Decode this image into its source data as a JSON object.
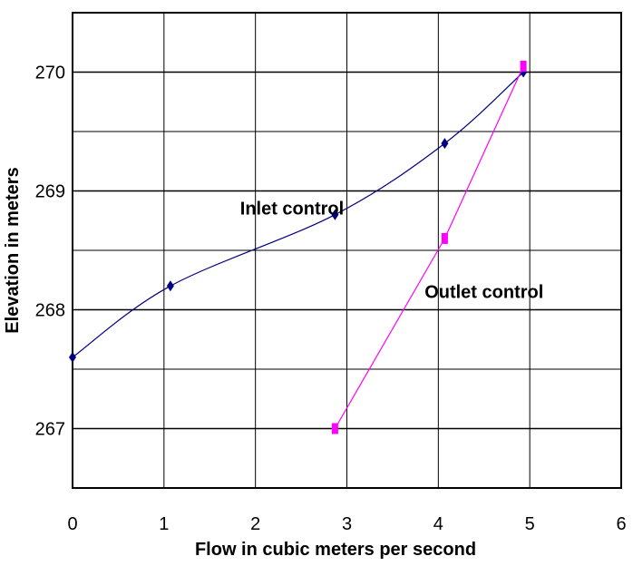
{
  "chart_data": {
    "type": "line",
    "title": "",
    "xlabel": "Flow in cubic meters per second",
    "ylabel": "Elevation in meters",
    "xlim": [
      0,
      6
    ],
    "ylim": [
      266.5,
      270.5
    ],
    "x_ticks": [
      0,
      1,
      2,
      3,
      4,
      5,
      6
    ],
    "y_ticks": [
      267,
      268,
      269,
      270
    ],
    "grid": true,
    "legend": "none",
    "series": [
      {
        "name": "Inlet control",
        "color": "#000080",
        "marker": "diamond",
        "smooth": true,
        "x": [
          0,
          1.07,
          2.87,
          4.07,
          4.93
        ],
        "y": [
          267.6,
          268.2,
          268.8,
          269.4,
          270.0
        ]
      },
      {
        "name": "Outlet control",
        "color": "#ff00ff",
        "marker": "square",
        "smooth": false,
        "x": [
          2.87,
          4.07,
          4.93
        ],
        "y": [
          267.0,
          268.6,
          270.05
        ]
      }
    ],
    "annotations": [
      {
        "text": "Inlet control",
        "x": 2.4,
        "y": 268.8
      },
      {
        "text": "Outlet control",
        "x": 4.5,
        "y": 268.1
      }
    ]
  }
}
